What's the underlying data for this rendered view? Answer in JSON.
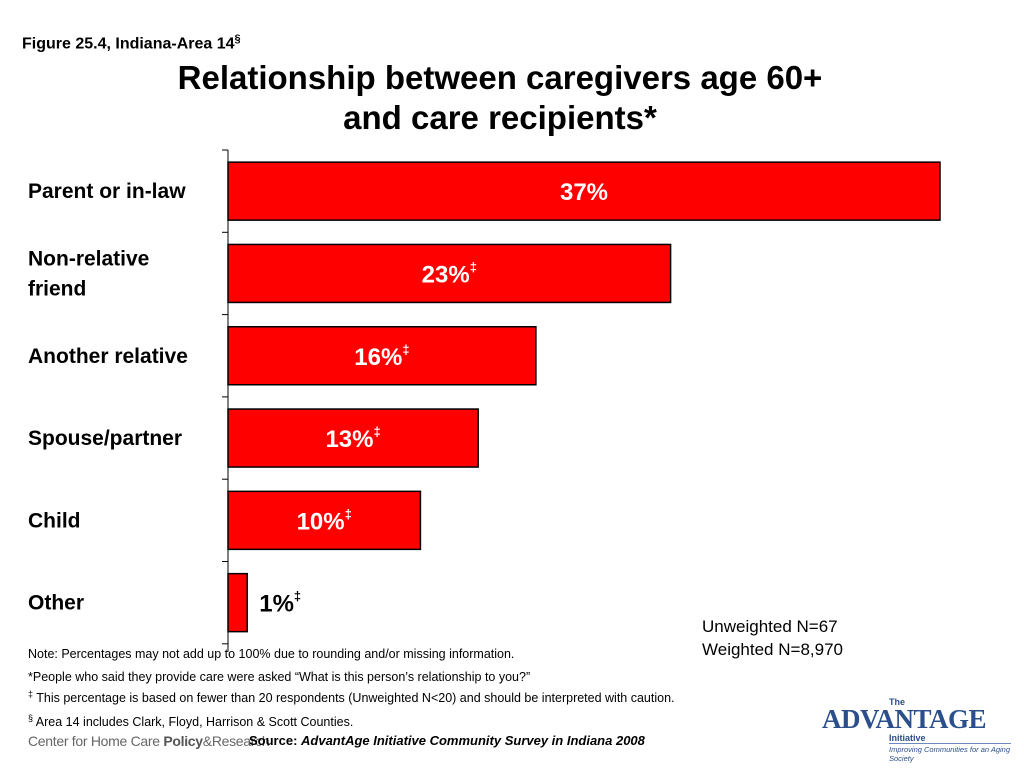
{
  "figure_label": {
    "text": "Figure 25.4, Indiana-Area 14",
    "mark": "§"
  },
  "title_line1": "Relationship between caregivers age 60+",
  "title_line2": "and care recipients*",
  "colors": {
    "bar_fill": "#ff0000",
    "bar_stroke": "#000000",
    "label_on_bar": "#ffffff"
  },
  "chart_data": {
    "type": "bar",
    "orientation": "horizontal",
    "categories": [
      [
        "Parent or in-law"
      ],
      [
        "Non-relative",
        "friend"
      ],
      [
        "Another relative"
      ],
      [
        "Spouse/partner"
      ],
      [
        "Child"
      ],
      [
        "Other"
      ]
    ],
    "values": [
      37,
      23,
      16,
      13,
      10,
      1
    ],
    "value_labels": [
      "37%",
      "23%",
      "16%",
      "13%",
      "10%",
      "1%"
    ],
    "value_marks": [
      "",
      "‡",
      "‡",
      "‡",
      "‡",
      "‡"
    ],
    "xlim": [
      0,
      37
    ]
  },
  "stats": {
    "unweighted": "Unweighted N=67",
    "weighted": "Weighted N=8,970"
  },
  "note": "Note: Percentages may not add up to 100% due to rounding and/or missing information.",
  "footnote_star": "*People who said they provide care were asked “What is this person’s relationship to you?”",
  "footnote_dagger": {
    "mark": "‡",
    "text": " This percentage is based on fewer than 20 respondents (Unweighted N<20) and should be interpreted with caution."
  },
  "footnote_section": {
    "mark": "§",
    "text": " Area 14 includes Clark, Floyd, Harrison & Scott Counties."
  },
  "source_logo": {
    "part1": "Center for Home Care ",
    "part2": "Policy",
    "part3": "&",
    "part4": "Research"
  },
  "source": {
    "label": "Source: ",
    "text": "AdvantAge Initiative Community Survey in Indiana 2008"
  },
  "adv_logo": {
    "the": "The",
    "main": "ADVANTAGE",
    "initiative": "Initiative",
    "tagline": "Improving Communities for an Aging Society"
  }
}
